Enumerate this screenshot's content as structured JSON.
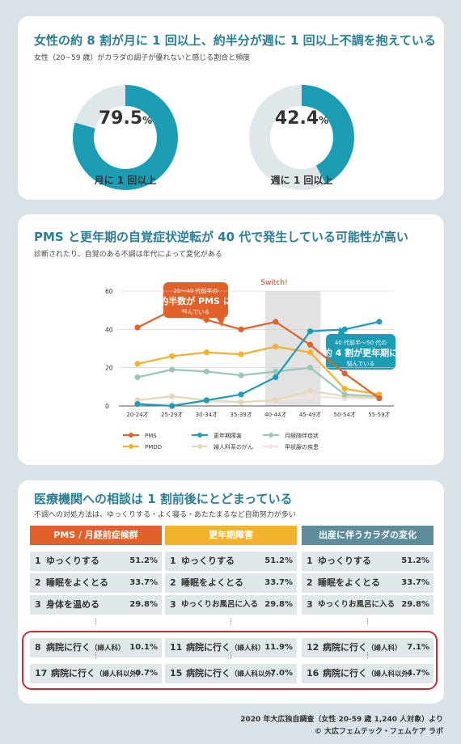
{
  "card1": {
    "title": "女性の約 8 割が月に 1 回以上、約半分が週に 1 回以上不調を抱えている",
    "subtitle": "女性（20~59 歳）がカラダの調子が優れないと感じる割合と頻度",
    "donuts": [
      {
        "value": 79.5,
        "big": "79.5",
        "pct": "%",
        "label": "月に 1 回以上"
      },
      {
        "value": 42.4,
        "big": "42.4",
        "pct": "%",
        "label": "週に 1 回以上"
      }
    ]
  },
  "card2": {
    "title": "PMS と更年期の自覚症状逆転が 40 代で発生している可能性が高い",
    "subtitle": "診断されたり、自覚のある不調は年代によって変化がある",
    "switch_label": "Switch!",
    "callout1": {
      "line1": "20～40 代前半の",
      "line2": "約半数が PMS に",
      "line3": "悩んでいる"
    },
    "callout2": {
      "line1": "40 代前半～50 代の",
      "line2": "約 4 割が更年期に",
      "line3": "悩んでいる"
    }
  },
  "chart_data": {
    "type": "line",
    "categories": [
      "20-24才",
      "25-29才",
      "30-34才",
      "35-39才",
      "40-44才",
      "45-49才",
      "50-54才",
      "55-59才"
    ],
    "ylim": [
      0,
      60
    ],
    "yticks": [
      0,
      20,
      40,
      60
    ],
    "series": [
      {
        "name": "PMS",
        "color": "#e2612a",
        "values": [
          41,
          50,
          45,
          40,
          44,
          32,
          17,
          4
        ]
      },
      {
        "name": "PMDD",
        "color": "#f2b22e",
        "values": [
          22,
          26,
          28,
          27,
          31,
          28,
          9,
          6
        ]
      },
      {
        "name": "更年期障害",
        "color": "#1b9db3",
        "values": [
          1,
          0,
          3,
          6,
          15,
          39,
          40,
          44
        ]
      },
      {
        "name": "婦人科系のがん",
        "color": "#e6d6bd",
        "values": [
          3,
          5,
          3,
          2,
          3,
          8,
          5,
          4
        ]
      },
      {
        "name": "月経随伴症状",
        "color": "#9cc5bd",
        "values": [
          15,
          19,
          18,
          16,
          18,
          20,
          6,
          5
        ]
      },
      {
        "name": "甲状腺の疾患",
        "color": "#f7e4dc",
        "values": [
          1,
          1,
          2,
          2,
          3,
          5,
          4,
          4
        ]
      }
    ]
  },
  "card3": {
    "title": "医療機関への相談は 1 割前後にとどまっている",
    "subtitle": "不調への対処方法は、ゆっくりする・よく寝る・あたたまるなど自助努力が多い",
    "columns": [
      {
        "header": "PMS / 月経前症候群",
        "color": "#e2612a",
        "rows": [
          {
            "rank": "1",
            "label": "ゆっくりする",
            "sub": "",
            "value": "51.2%"
          },
          {
            "rank": "2",
            "label": "睡眠をよくとる",
            "sub": "",
            "value": "33.7%"
          },
          {
            "rank": "3",
            "label": "身体を温める",
            "sub": "",
            "value": "29.8%"
          },
          {
            "rank": "8",
            "label": "病院に行く",
            "sub": "（婦人科）",
            "value": "10.1%"
          },
          {
            "rank": "17",
            "label": "病院に行く",
            "sub": "（婦人科以外）",
            "value": "0.7%"
          }
        ]
      },
      {
        "header": "更年期障害",
        "color": "#f2b22e",
        "rows": [
          {
            "rank": "1",
            "label": "ゆっくりする",
            "sub": "",
            "value": "51.2%"
          },
          {
            "rank": "2",
            "label": "睡眠をよくとる",
            "sub": "",
            "value": "33.7%"
          },
          {
            "rank": "3",
            "label": "ゆっくりお風呂に入る",
            "sub": "",
            "value": "29.8%"
          },
          {
            "rank": "11",
            "label": "病院に行く",
            "sub": "（婦人科）",
            "value": "11.9%"
          },
          {
            "rank": "15",
            "label": "病院に行く",
            "sub": "（婦人科以外）",
            "value": "7.0%"
          }
        ]
      },
      {
        "header": "出産に伴うカラダの変化",
        "color": "#5d8d9b",
        "rows": [
          {
            "rank": "1",
            "label": "ゆっくりする",
            "sub": "",
            "value": "51.2%"
          },
          {
            "rank": "2",
            "label": "睡眠をよくとる",
            "sub": "",
            "value": "33.7%"
          },
          {
            "rank": "3",
            "label": "ゆっくりお風呂に入る",
            "sub": "",
            "value": "29.8%"
          },
          {
            "rank": "12",
            "label": "病院に行く",
            "sub": "（婦人科）",
            "value": "7.1%"
          },
          {
            "rank": "16",
            "label": "病院に行く",
            "sub": "（婦人科以外）",
            "value": "4.7%"
          }
        ]
      }
    ],
    "dots": "⋮"
  },
  "source": {
    "line1": "2020 年大広独自調査（女性 20-59 歳 1,240 人対象）より",
    "line2": "© 大広フェムテック・フェムケア ラボ"
  }
}
